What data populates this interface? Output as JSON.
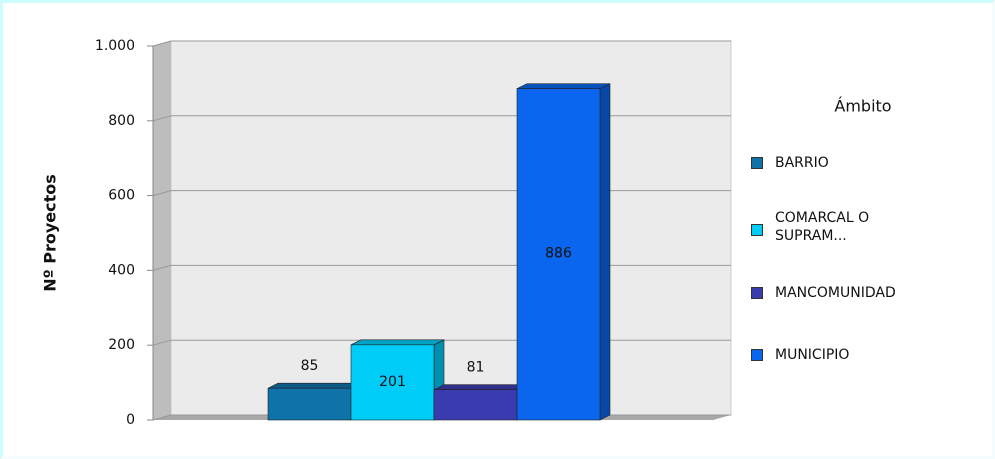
{
  "chart_data": {
    "type": "bar3d",
    "y_label": "Nº Proyectos",
    "legend_title": "Ámbito",
    "categories": [
      "BARRIO",
      "COMARCAL O SUPRAM...",
      "MANCOMUNIDAD",
      "MUNICIPIO"
    ],
    "values": [
      85,
      201,
      81,
      886
    ],
    "colors": [
      "#0f72a8",
      "#00ccf8",
      "#3b3bb0",
      "#0a66ee"
    ],
    "ylim": [
      0,
      1000
    ],
    "yticks": [
      0,
      200,
      400,
      600,
      800,
      {
        "value": 1000,
        "label": "1.000"
      }
    ],
    "grid": true,
    "legend": "right"
  }
}
